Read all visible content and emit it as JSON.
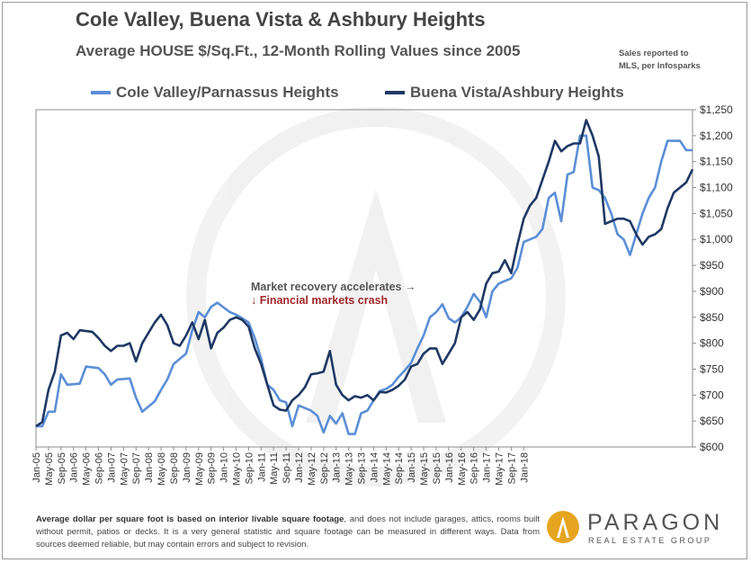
{
  "title": "Cole Valley, Buena Vista & Ashbury Heights",
  "subtitle": "Average HOUSE $/Sq.Ft., 12-Month Rolling Values since 2005",
  "source_note": [
    "Sales reported to",
    "MLS, per Infosparks"
  ],
  "footnote": {
    "bold": "Average dollar per square foot is based on interior livable square footage",
    "rest": ", and does not include garages, attics, rooms built without permit, patios or decks. It is a very general statistic and square footage can be measured in different ways. Data from sources deemed reliable, but may contain errors and subject to revision."
  },
  "brand": {
    "name": "PARAGON",
    "tagline": "REAL ESTATE GROUP"
  },
  "colors": {
    "cole_valley": "#5b8ed6",
    "buena_vista": "#1f3864",
    "crash": "#a0282c",
    "recovery": "#555555",
    "logo_gold": "#e6a520"
  },
  "chart_data": {
    "type": "line",
    "title": "Cole Valley, Buena Vista & Ashbury Heights",
    "subtitle": "Average HOUSE $/Sq.Ft., 12-Month Rolling Values since 2005",
    "xlabel": "",
    "ylabel": "",
    "ylim": [
      600,
      1250
    ],
    "yticks": [
      600,
      650,
      700,
      750,
      800,
      850,
      900,
      950,
      1000,
      1050,
      1100,
      1150,
      1200,
      1250
    ],
    "ytick_labels": [
      "$600",
      "$650",
      "$700",
      "$750",
      "$800",
      "$850",
      "$900",
      "$950",
      "$1,000",
      "$1,050",
      "$1,100",
      "$1,150",
      "$1,200",
      "$1,250"
    ],
    "xtick_labels": [
      "Jan-05",
      "May-05",
      "Sep-05",
      "Jan-06",
      "May-06",
      "Sep-06",
      "Jan-07",
      "May-07",
      "Sep-07",
      "Jan-08",
      "May-08",
      "Sep-08",
      "Jan-09",
      "May-09",
      "Sep-09",
      "Jan-10",
      "May-10",
      "Sep-10",
      "Jan-11",
      "May-11",
      "Sep-11",
      "Jan-12",
      "May-12",
      "Sep-12",
      "Jan-13",
      "May-13",
      "Sep-13",
      "Jan-14",
      "May-14",
      "Sep-14",
      "Jan-15",
      "May-15",
      "Sep-15",
      "Jan-16",
      "May-16",
      "Sep-16",
      "Jan-17",
      "May-17",
      "Sep-17",
      "Jan-18"
    ],
    "x_start": "Jan-05",
    "x_end": "Jun-18",
    "legend_position": "top",
    "grid": false,
    "annotations": [
      {
        "text": "Market recovery accelerates →",
        "color": "recovery"
      },
      {
        "text": "↓ Financial markets crash",
        "color": "crash"
      }
    ],
    "series": [
      {
        "name": "Cole Valley/Parnassus Heights",
        "color": "#5b8ed6",
        "keypoints": [
          [
            0,
            640
          ],
          [
            2,
            640
          ],
          [
            4,
            668
          ],
          [
            6,
            668
          ],
          [
            8,
            740
          ],
          [
            10,
            720
          ],
          [
            14,
            722
          ],
          [
            16,
            755
          ],
          [
            20,
            752
          ],
          [
            22,
            740
          ],
          [
            24,
            720
          ],
          [
            26,
            730
          ],
          [
            30,
            732
          ],
          [
            32,
            695
          ],
          [
            34,
            668
          ],
          [
            38,
            688
          ],
          [
            40,
            710
          ],
          [
            42,
            730
          ],
          [
            44,
            760
          ],
          [
            48,
            780
          ],
          [
            50,
            825
          ],
          [
            52,
            860
          ],
          [
            54,
            850
          ],
          [
            56,
            870
          ],
          [
            58,
            878
          ],
          [
            62,
            860
          ],
          [
            64,
            855
          ],
          [
            66,
            848
          ],
          [
            68,
            840
          ],
          [
            70,
            810
          ],
          [
            72,
            770
          ],
          [
            74,
            720
          ],
          [
            76,
            710
          ],
          [
            78,
            690
          ],
          [
            80,
            686
          ],
          [
            82,
            640
          ],
          [
            84,
            680
          ],
          [
            88,
            670
          ],
          [
            90,
            660
          ],
          [
            92,
            628
          ],
          [
            94,
            660
          ],
          [
            96,
            645
          ],
          [
            98,
            665
          ],
          [
            100,
            625
          ],
          [
            102,
            625
          ],
          [
            104,
            665
          ],
          [
            106,
            670
          ],
          [
            108,
            690
          ],
          [
            110,
            708
          ],
          [
            112,
            712
          ],
          [
            114,
            720
          ],
          [
            116,
            735
          ],
          [
            118,
            748
          ],
          [
            120,
            762
          ],
          [
            122,
            790
          ],
          [
            124,
            815
          ],
          [
            126,
            850
          ],
          [
            128,
            860
          ],
          [
            130,
            875
          ],
          [
            132,
            848
          ],
          [
            134,
            840
          ],
          [
            136,
            850
          ],
          [
            138,
            870
          ],
          [
            140,
            895
          ],
          [
            142,
            880
          ],
          [
            144,
            850
          ],
          [
            146,
            900
          ],
          [
            148,
            915
          ],
          [
            152,
            925
          ],
          [
            154,
            945
          ],
          [
            156,
            995
          ],
          [
            158,
            1000
          ],
          [
            160,
            1005
          ],
          [
            162,
            1020
          ],
          [
            164,
            1080
          ],
          [
            166,
            1090
          ],
          [
            168,
            1035
          ],
          [
            170,
            1125
          ],
          [
            172,
            1130
          ],
          [
            174,
            1200
          ],
          [
            176,
            1200
          ],
          [
            178,
            1100
          ],
          [
            180,
            1095
          ],
          [
            182,
            1080
          ],
          [
            184,
            1050
          ],
          [
            186,
            1010
          ],
          [
            188,
            1000
          ],
          [
            190,
            970
          ],
          [
            192,
            1010
          ],
          [
            194,
            1050
          ],
          [
            196,
            1080
          ],
          [
            198,
            1100
          ],
          [
            200,
            1150
          ],
          [
            202,
            1190
          ],
          [
            206,
            1190
          ],
          [
            208,
            1172
          ],
          [
            210,
            1172
          ]
        ]
      },
      {
        "name": "Buena Vista/Ashbury Heights",
        "color": "#1f3864",
        "keypoints": [
          [
            0,
            640
          ],
          [
            2,
            648
          ],
          [
            4,
            710
          ],
          [
            6,
            745
          ],
          [
            8,
            815
          ],
          [
            10,
            820
          ],
          [
            12,
            808
          ],
          [
            14,
            825
          ],
          [
            18,
            822
          ],
          [
            20,
            810
          ],
          [
            22,
            795
          ],
          [
            24,
            785
          ],
          [
            26,
            795
          ],
          [
            28,
            795
          ],
          [
            30,
            800
          ],
          [
            32,
            765
          ],
          [
            34,
            800
          ],
          [
            36,
            820
          ],
          [
            38,
            840
          ],
          [
            40,
            855
          ],
          [
            42,
            835
          ],
          [
            44,
            800
          ],
          [
            46,
            795
          ],
          [
            48,
            815
          ],
          [
            50,
            840
          ],
          [
            52,
            808
          ],
          [
            54,
            845
          ],
          [
            56,
            790
          ],
          [
            58,
            820
          ],
          [
            60,
            830
          ],
          [
            62,
            845
          ],
          [
            64,
            850
          ],
          [
            66,
            845
          ],
          [
            68,
            832
          ],
          [
            70,
            790
          ],
          [
            72,
            760
          ],
          [
            74,
            720
          ],
          [
            76,
            680
          ],
          [
            78,
            672
          ],
          [
            80,
            670
          ],
          [
            82,
            690
          ],
          [
            84,
            700
          ],
          [
            86,
            715
          ],
          [
            88,
            740
          ],
          [
            90,
            742
          ],
          [
            92,
            745
          ],
          [
            94,
            785
          ],
          [
            96,
            720
          ],
          [
            98,
            700
          ],
          [
            100,
            690
          ],
          [
            102,
            698
          ],
          [
            104,
            695
          ],
          [
            106,
            700
          ],
          [
            108,
            690
          ],
          [
            110,
            706
          ],
          [
            112,
            705
          ],
          [
            114,
            710
          ],
          [
            116,
            718
          ],
          [
            118,
            730
          ],
          [
            120,
            755
          ],
          [
            122,
            760
          ],
          [
            124,
            780
          ],
          [
            126,
            790
          ],
          [
            128,
            790
          ],
          [
            130,
            760
          ],
          [
            132,
            780
          ],
          [
            134,
            800
          ],
          [
            136,
            850
          ],
          [
            138,
            860
          ],
          [
            140,
            845
          ],
          [
            142,
            865
          ],
          [
            144,
            915
          ],
          [
            146,
            935
          ],
          [
            148,
            938
          ],
          [
            150,
            960
          ],
          [
            152,
            935
          ],
          [
            154,
            990
          ],
          [
            156,
            1040
          ],
          [
            158,
            1065
          ],
          [
            160,
            1080
          ],
          [
            162,
            1115
          ],
          [
            164,
            1150
          ],
          [
            166,
            1190
          ],
          [
            168,
            1170
          ],
          [
            170,
            1180
          ],
          [
            172,
            1185
          ],
          [
            174,
            1185
          ],
          [
            176,
            1230
          ],
          [
            178,
            1200
          ],
          [
            180,
            1160
          ],
          [
            182,
            1030
          ],
          [
            184,
            1035
          ],
          [
            186,
            1040
          ],
          [
            188,
            1040
          ],
          [
            190,
            1035
          ],
          [
            192,
            1010
          ],
          [
            194,
            990
          ],
          [
            196,
            1005
          ],
          [
            198,
            1010
          ],
          [
            200,
            1020
          ],
          [
            202,
            1060
          ],
          [
            204,
            1090
          ],
          [
            206,
            1100
          ],
          [
            208,
            1110
          ],
          [
            210,
            1135
          ]
        ]
      }
    ]
  }
}
